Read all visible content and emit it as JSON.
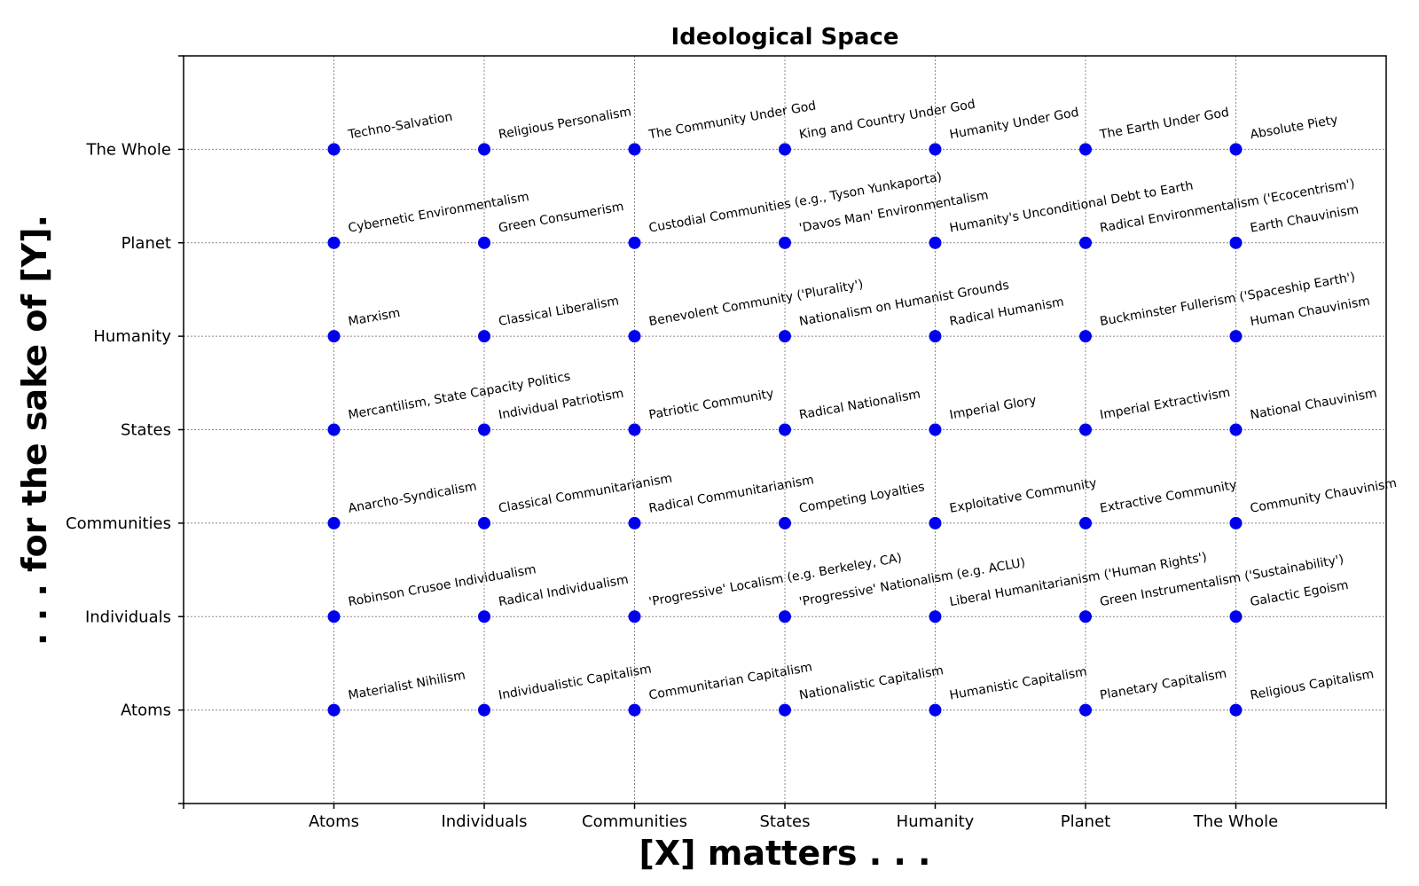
{
  "chart_data": {
    "type": "scatter",
    "title": "Ideological Space",
    "xlabel": "[X] matters . . .",
    "ylabel": ". . . for the sake of [Y].",
    "x_categories": [
      "Atoms",
      "Individuals",
      "Communities",
      "States",
      "Humanity",
      "Planet",
      "The Whole"
    ],
    "y_categories": [
      "Atoms",
      "Individuals",
      "Communities",
      "States",
      "Humanity",
      "Planet",
      "The Whole"
    ],
    "grid": true,
    "marker_color": "#0000ee",
    "labels": [
      [
        "Materialist Nihilism",
        "Individualistic Capitalism",
        "Communitarian Capitalism",
        "Nationalistic Capitalism",
        "Humanistic Capitalism",
        "Planetary Capitalism",
        "Religious Capitalism"
      ],
      [
        "Robinson Crusoe Individualism",
        "Radical Individualism",
        "'Progressive' Localism (e.g. Berkeley, CA)",
        "'Progressive' Nationalism (e.g. ACLU)",
        "Liberal Humanitarianism ('Human Rights')",
        "Green Instrumentalism ('Sustainability')",
        "Galactic Egoism"
      ],
      [
        "Anarcho-Syndicalism",
        "Classical Communitarianism",
        "Radical Communitarianism",
        "Competing Loyalties",
        "Exploitative Community",
        "Extractive Community",
        "Community Chauvinism"
      ],
      [
        "Mercantilism, State Capacity Politics",
        "Individual Patriotism",
        "Patriotic Community",
        "Radical Nationalism",
        "Imperial Glory",
        "Imperial Extractivism",
        "National Chauvinism"
      ],
      [
        "Marxism",
        "Classical Liberalism",
        "Benevolent Community ('Plurality')",
        "Nationalism on Humanist Grounds",
        "Radical Humanism",
        "Buckminster Fullerism ('Spaceship Earth')",
        "Human Chauvinism"
      ],
      [
        "Cybernetic Environmentalism",
        "Green Consumerism",
        "Custodial Communities (e.g., Tyson Yunkaporta)",
        "'Davos Man' Environmentalism",
        "Humanity's Unconditional Debt to Earth",
        "Radical Environmentalism ('Ecocentrism')",
        "Earth Chauvinism"
      ],
      [
        "Techno-Salvation",
        "Religious Personalism",
        "The Community Under God",
        "King and Country Under God",
        "Humanity Under God",
        "The Earth Under God",
        "Absolute Piety"
      ]
    ]
  }
}
